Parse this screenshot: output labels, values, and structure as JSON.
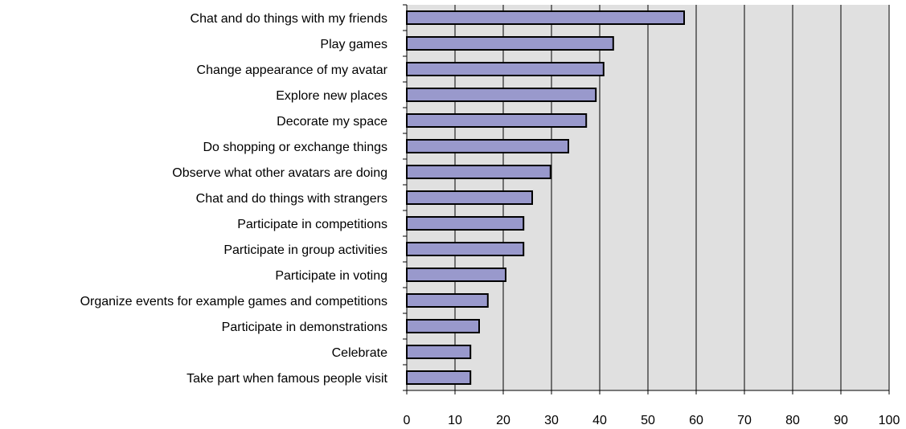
{
  "chart_data": {
    "type": "bar",
    "orientation": "horizontal",
    "title": "",
    "xlabel": "",
    "ylabel": "",
    "categories": [
      "Chat and do things with my friends",
      "Play games",
      "Change appearance of my avatar",
      "Explore new places",
      "Decorate my space",
      "Do shopping or exchange things",
      "Observe what other avatars are doing",
      "Chat and do things with strangers",
      "Participate in competitions",
      "Participate in group activities",
      "Participate in voting",
      "Organize events for example games and competitions",
      "Participate in demonstrations",
      "Celebrate",
      "Take part when famous people visit"
    ],
    "values": [
      57.5,
      42.8,
      40.8,
      39.2,
      37.2,
      33.5,
      29.8,
      26,
      24.2,
      24.2,
      20.5,
      16.8,
      15,
      13.2,
      13.2
    ],
    "xlim": [
      0,
      100
    ],
    "xticks": [
      "0",
      "10",
      "20",
      "30",
      "40",
      "50",
      "60",
      "70",
      "80",
      "90",
      "100"
    ],
    "grid": true,
    "legend": "none",
    "colors": {
      "bar_fill": "#9999cc",
      "bar_stroke": "#000000",
      "plot_background": "#e0e0e0",
      "gridline": "#000000"
    }
  }
}
